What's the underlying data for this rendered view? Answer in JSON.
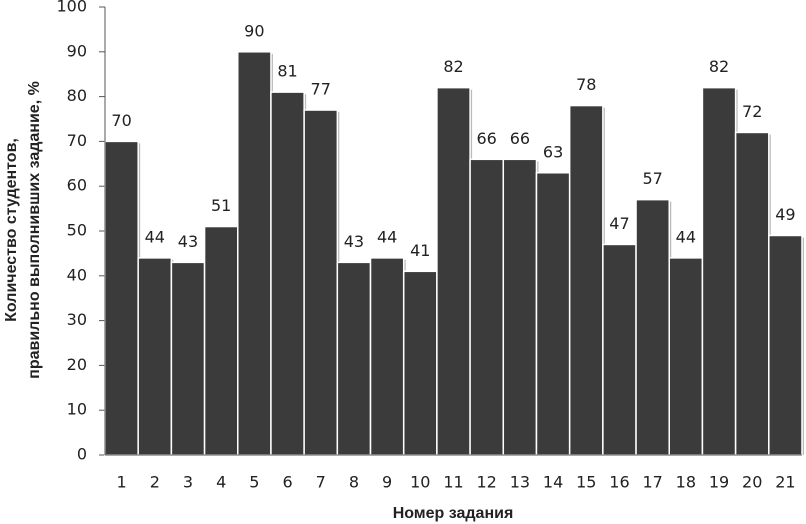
{
  "chart_data": {
    "type": "bar",
    "x_label": "Номер задания",
    "y_label": [
      "Количество студентов,",
      "правильно выполнивших задание, %"
    ],
    "categories": [
      "1",
      "2",
      "3",
      "4",
      "5",
      "6",
      "7",
      "8",
      "9",
      "10",
      "11",
      "12",
      "13",
      "14",
      "15",
      "16",
      "17",
      "18",
      "19",
      "20",
      "21"
    ],
    "values": [
      70,
      44,
      43,
      51,
      90,
      81,
      77,
      43,
      44,
      41,
      82,
      66,
      66,
      63,
      78,
      47,
      57,
      44,
      82,
      72,
      49
    ],
    "color": "#3b3b3b",
    "ylim": [
      0,
      100
    ],
    "yticks": [
      0,
      10,
      20,
      30,
      40,
      50,
      60,
      70,
      80,
      90,
      100
    ],
    "grid": false
  }
}
